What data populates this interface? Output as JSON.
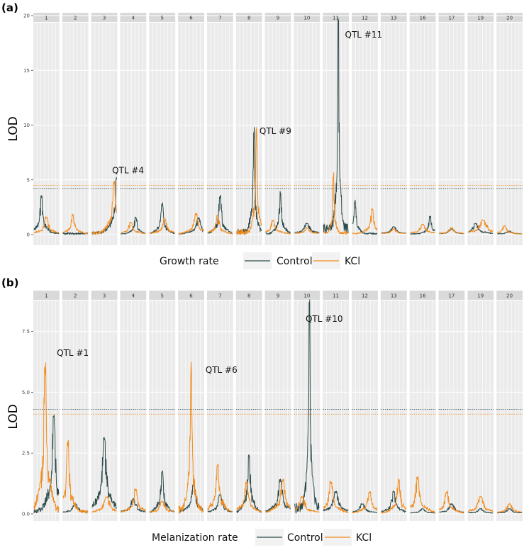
{
  "chart_data": [
    {
      "type": "line",
      "panel_label": "(a)",
      "ylabel": "LOD",
      "ylim": [
        0,
        20
      ],
      "yticks": [
        0,
        5,
        10,
        15,
        20
      ],
      "ytick_labels": [
        "0",
        "5",
        "10",
        "15",
        "20"
      ],
      "chromosomes": [
        "1",
        "2",
        "3",
        "4",
        "5",
        "6",
        "7",
        "8",
        "9",
        "10",
        "11",
        "12",
        "13",
        "16",
        "17",
        "19",
        "20"
      ],
      "thresholds": [
        {
          "series": "Control",
          "value": 4.2
        },
        {
          "series": "KCl",
          "value": 4.5
        }
      ],
      "legend": {
        "title": "Growth rate",
        "placement": "bottom"
      },
      "series": [
        {
          "name": "Control",
          "color": "#2e4a4a",
          "peaks": [
            [
              3.5,
              0.3,
              0.1
            ],
            [
              3.0,
              1.8,
              0.12
            ],
            [
              5.2,
              1.0,
              0.12
            ],
            [
              1.6,
              0.6,
              0.1
            ],
            [
              2.8,
              0.5,
              0.1
            ],
            [
              1.5,
              0.8,
              0.15
            ],
            [
              3.5,
              0.5,
              0.1
            ],
            [
              9.5,
              0.7,
              0.06
            ],
            [
              3.8,
              0.6,
              0.08
            ],
            [
              1.0,
              0.5,
              0.2
            ],
            [
              19.6,
              0.6,
              0.05
            ],
            [
              3.0,
              0.1,
              0.08
            ],
            [
              0.7,
              0.5,
              0.2
            ],
            [
              1.6,
              0.8,
              0.1
            ],
            [
              0.5,
              0.5,
              0.2
            ],
            [
              1.0,
              0.3,
              0.2
            ],
            [
              0.3,
              0.5,
              0.2
            ]
          ]
        },
        {
          "name": "KCl",
          "color": "#f28c1e",
          "peaks": [
            [
              1.6,
              0.5,
              0.15
            ],
            [
              1.8,
              0.4,
              0.12
            ],
            [
              4.8,
              0.9,
              0.12
            ],
            [
              1.1,
              0.4,
              0.15
            ],
            [
              1.4,
              0.6,
              0.15
            ],
            [
              1.9,
              0.7,
              0.15
            ],
            [
              1.7,
              0.4,
              0.12
            ],
            [
              9.6,
              0.8,
              0.06
            ],
            [
              1.3,
              0.3,
              0.15
            ],
            [
              0.6,
              0.5,
              0.2
            ],
            [
              5.5,
              0.4,
              0.05
            ],
            [
              2.3,
              0.8,
              0.12
            ],
            [
              0.5,
              0.5,
              0.2
            ],
            [
              0.9,
              0.5,
              0.2
            ],
            [
              0.6,
              0.5,
              0.2
            ],
            [
              1.3,
              0.6,
              0.25
            ],
            [
              0.8,
              0.3,
              0.15
            ]
          ]
        }
      ],
      "annotations": [
        {
          "text": "QTL #4",
          "x_chrom": "3",
          "x_frac": 0.8,
          "y": 5.6
        },
        {
          "text": "QTL #9",
          "x_chrom": "8",
          "x_frac": 0.9,
          "y": 9.2
        },
        {
          "text": "QTL #11",
          "x_chrom": "11",
          "x_frac": 0.85,
          "y": 18.0
        }
      ]
    },
    {
      "type": "line",
      "panel_label": "(b)",
      "ylabel": "LOD",
      "ylim": [
        0,
        8.8
      ],
      "yticks": [
        0,
        2.5,
        5.0,
        7.5
      ],
      "ytick_labels": [
        "0.0",
        "2.5",
        "5.0",
        "7.5"
      ],
      "chromosomes": [
        "1",
        "2",
        "3",
        "4",
        "5",
        "6",
        "7",
        "8",
        "9",
        "10",
        "11",
        "12",
        "13",
        "16",
        "17",
        "19",
        "20"
      ],
      "thresholds": [
        {
          "series": "Control",
          "value": 4.3
        },
        {
          "series": "KCl",
          "value": 4.1
        }
      ],
      "legend": {
        "title": "Melanization rate",
        "placement": "bottom"
      },
      "series": [
        {
          "name": "Control",
          "color": "#2e4a4a",
          "peaks": [
            [
              4.0,
              0.8,
              0.12
            ],
            [
              0.4,
              0.5,
              0.2
            ],
            [
              3.1,
              0.5,
              0.15
            ],
            [
              0.6,
              0.5,
              0.2
            ],
            [
              1.8,
              0.5,
              0.1
            ],
            [
              1.2,
              0.6,
              0.15
            ],
            [
              0.8,
              0.5,
              0.15
            ],
            [
              2.4,
              0.5,
              0.1
            ],
            [
              1.4,
              0.6,
              0.15
            ],
            [
              8.7,
              0.6,
              0.06
            ],
            [
              0.9,
              0.5,
              0.2
            ],
            [
              0.4,
              0.4,
              0.2
            ],
            [
              0.9,
              0.5,
              0.15
            ],
            [
              0.2,
              0.5,
              0.2
            ],
            [
              0.4,
              0.5,
              0.2
            ],
            [
              0.2,
              0.5,
              0.2
            ],
            [
              0.2,
              0.5,
              0.2
            ]
          ]
        },
        {
          "name": "KCl",
          "color": "#f28c1e",
          "peaks": [
            [
              6.2,
              0.45,
              0.1
            ],
            [
              3.0,
              0.2,
              0.1
            ],
            [
              0.7,
              0.6,
              0.2
            ],
            [
              1.0,
              0.6,
              0.15
            ],
            [
              0.5,
              0.5,
              0.2
            ],
            [
              6.2,
              0.5,
              0.07
            ],
            [
              2.1,
              0.4,
              0.12
            ],
            [
              1.3,
              0.4,
              0.15
            ],
            [
              1.4,
              0.7,
              0.15
            ],
            [
              0.7,
              0.3,
              0.2
            ],
            [
              1.3,
              0.3,
              0.15
            ],
            [
              0.9,
              0.7,
              0.15
            ],
            [
              1.4,
              0.7,
              0.12
            ],
            [
              1.5,
              0.3,
              0.15
            ],
            [
              0.9,
              0.3,
              0.15
            ],
            [
              0.7,
              0.5,
              0.2
            ],
            [
              0.4,
              0.5,
              0.2
            ]
          ]
        }
      ],
      "annotations": [
        {
          "text": "QTL #1",
          "x_chrom": "1",
          "x_frac": 0.9,
          "y": 6.5
        },
        {
          "text": "QTL #6",
          "x_chrom": "6",
          "x_frac": 1.05,
          "y": 5.8
        },
        {
          "text": "QTL #10",
          "x_chrom": "10",
          "x_frac": 0.45,
          "y": 7.9
        }
      ]
    }
  ]
}
